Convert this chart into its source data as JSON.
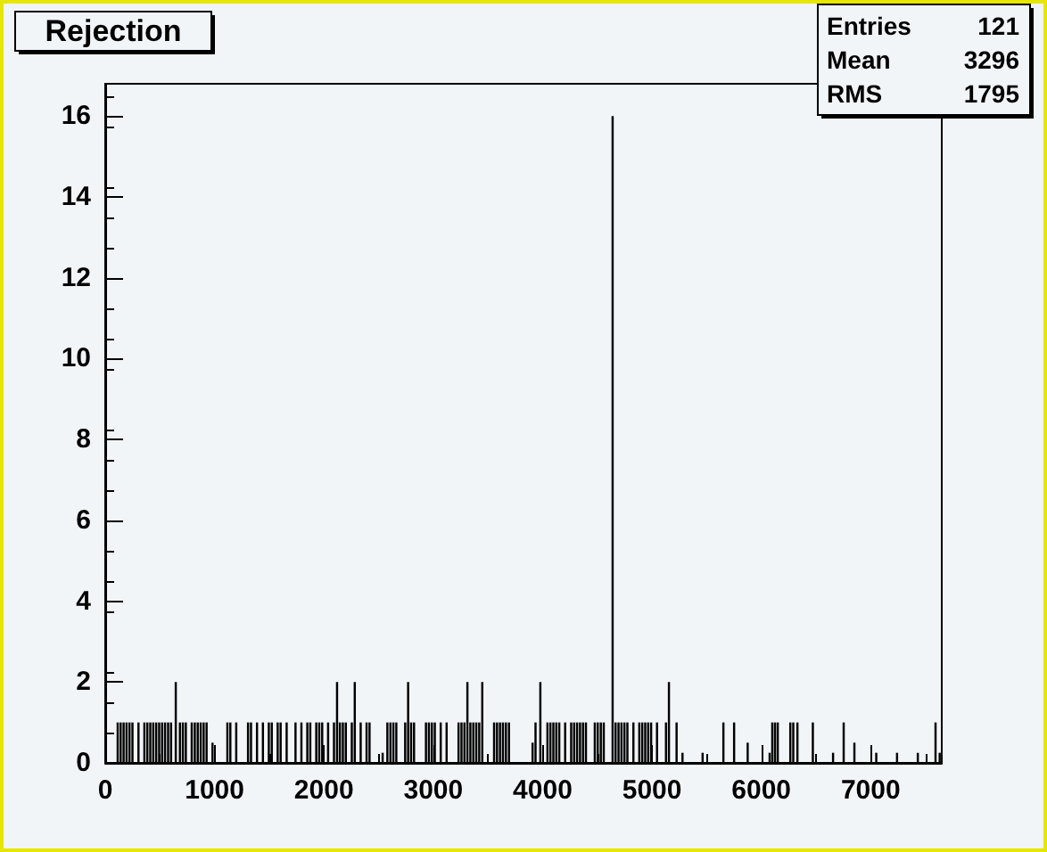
{
  "chart_data": {
    "type": "histogram",
    "title": "Rejection",
    "annotations": [
      "Entries",
      "121",
      "Mean",
      "3296",
      "RMS",
      "1795"
    ],
    "color": "#000000",
    "bins": [
      104,
      124,
      131,
      151,
      158,
      178,
      185,
      205,
      212,
      232,
      239,
      259,
      294,
      314,
      348,
      368,
      375,
      395,
      402,
      422,
      429,
      449,
      456,
      476,
      483,
      503,
      510,
      530,
      537,
      557,
      565,
      585,
      592,
      612,
      635,
      655,
      673,
      693,
      700,
      720,
      727,
      747,
      781,
      801,
      809,
      829,
      836,
      856,
      863,
      883,
      890,
      910,
      917,
      937,
      971,
      991,
      1107,
      1127,
      1134,
      1154,
      1188,
      1208,
      1296,
      1316,
      1323,
      1343,
      1378,
      1398,
      1432,
      1452,
      1486,
      1506,
      1513,
      1533,
      1567,
      1587,
      1594,
      1614,
      1649,
      1669,
      1730,
      1750,
      1784,
      1804,
      1838,
      1858,
      1865,
      1885,
      1920,
      1940,
      1947,
      1967,
      1974,
      1994,
      2028,
      2048,
      2082,
      2102,
      2110,
      2130,
      2136,
      2156,
      2163,
      2183,
      2190,
      2210,
      2245,
      2265,
      2272,
      2292,
      2326,
      2346,
      2380,
      2400,
      2407,
      2427,
      2527,
      2547,
      2570,
      2590,
      2598,
      2618,
      2625,
      2645,
      2652,
      2672,
      2733,
      2753,
      2760,
      2780,
      2787,
      2807,
      2814,
      2834,
      2923,
      2943,
      2950,
      2970,
      2977,
      2997,
      3004,
      3024,
      3058,
      3078,
      3112,
      3132,
      3221,
      3241,
      3248,
      3268,
      3275,
      3295,
      3302,
      3322,
      3329,
      3349,
      3356,
      3376,
      3383,
      3403,
      3410,
      3430,
      3438,
      3458,
      3546,
      3566,
      3573,
      3593,
      3600,
      3620,
      3627,
      3647,
      3654,
      3674,
      3682,
      3702,
      3898,
      3918,
      3925,
      3945,
      3969,
      3989,
      4034,
      4054,
      4061,
      4081,
      4088,
      4108,
      4115,
      4135,
      4142,
      4162,
      4196,
      4216,
      4251,
      4271,
      4278,
      4298,
      4305,
      4325,
      4332,
      4352,
      4359,
      4379,
      4386,
      4406,
      4467,
      4487,
      4494,
      4514,
      4522,
      4542,
      4549,
      4569,
      4630,
      4650,
      4657,
      4677,
      4684,
      4704,
      4711,
      4731,
      4738,
      4758,
      4765,
      4785,
      4820,
      4840,
      4874,
      4894,
      4901,
      4921,
      4928,
      4948,
      4955,
      4975,
      4982,
      5002,
      5036,
      5056,
      5118,
      5138,
      5145,
      5165,
      5215,
      5235,
      5269,
      5289,
      5453,
      5473,
      5643,
      5663,
      5741,
      5761,
      5865,
      5885,
      6066,
      6086,
      6090,
      6110,
      6115,
      6135,
      6140,
      6160,
      6255,
      6275,
      6282,
      6302,
      6320,
      6340,
      6461,
      6481,
      6646,
      6666,
      6743,
      6763,
      6841,
      6861,
      7041,
      7061,
      7231,
      7251,
      7421,
      7441,
      7583,
      7603,
      7621,
      7641
    ],
    "values": [
      1,
      0,
      1,
      0,
      1,
      0,
      1,
      0,
      1,
      0,
      1,
      0,
      1,
      0,
      1,
      0,
      1,
      0,
      1,
      0,
      1,
      0,
      1,
      0,
      1,
      0,
      1,
      0,
      1,
      0,
      1,
      0,
      1,
      0,
      2,
      0,
      1,
      0,
      1,
      0,
      1,
      0,
      1,
      0,
      1,
      0,
      1,
      0,
      1,
      0,
      1,
      0,
      1,
      0,
      0.5,
      0,
      1,
      0,
      1,
      0,
      1,
      0,
      1,
      0,
      1,
      0,
      1,
      0,
      1,
      0,
      1,
      0,
      1,
      0,
      1,
      0,
      1,
      0,
      1,
      0,
      1,
      0,
      1,
      0,
      1,
      0,
      1,
      0,
      1,
      0,
      1,
      0,
      1,
      0,
      1,
      0,
      1,
      0,
      2,
      0,
      1,
      0,
      1,
      0,
      1,
      0,
      1,
      0,
      2,
      0,
      1,
      0,
      1,
      0,
      1,
      0,
      0.25,
      0,
      1,
      0,
      1,
      0,
      1,
      0,
      1,
      0,
      1,
      0,
      2,
      0,
      1,
      0,
      1,
      0,
      1,
      0,
      1,
      0,
      1,
      0,
      1,
      0,
      1,
      0,
      1,
      0,
      1,
      0,
      1,
      0,
      1,
      0,
      2,
      0,
      1,
      0,
      1,
      0,
      1,
      0,
      1,
      0,
      2,
      0,
      1,
      0,
      1,
      0,
      1,
      0,
      1,
      0,
      1,
      0,
      1,
      0,
      0.5,
      0,
      1,
      0,
      2,
      0,
      1,
      0,
      1,
      0,
      1,
      0,
      1,
      0,
      1,
      0,
      1,
      0,
      1,
      0,
      1,
      0,
      1,
      0,
      1,
      0,
      1,
      0,
      1,
      0,
      1,
      0,
      1,
      0,
      1,
      0,
      1,
      0,
      16,
      0,
      1,
      0,
      1,
      0,
      1,
      0,
      1,
      0,
      1,
      0,
      1,
      0,
      1,
      0,
      1,
      0,
      1,
      0,
      1,
      0,
      1,
      0,
      1,
      0,
      1,
      0,
      2,
      0,
      1,
      0,
      0.25,
      0,
      0.25,
      0,
      1,
      0,
      1,
      0,
      0.5,
      0,
      0.25,
      0,
      1,
      0,
      1,
      0,
      1,
      0,
      1,
      0,
      1,
      0,
      1,
      0,
      1,
      0,
      0.25,
      0,
      1,
      0,
      0.5,
      0,
      0.25,
      0,
      0.25,
      0,
      0.25,
      0,
      1,
      0,
      0.25
    ],
    "xlim": [
      0,
      7650
    ],
    "xticks": [
      0,
      1000,
      2000,
      3000,
      4000,
      5000,
      6000,
      7000
    ],
    "ylim": [
      0,
      16.8
    ],
    "yticks": [
      0,
      2,
      4,
      6,
      8,
      10,
      12,
      14,
      16
    ],
    "grid": false
  }
}
